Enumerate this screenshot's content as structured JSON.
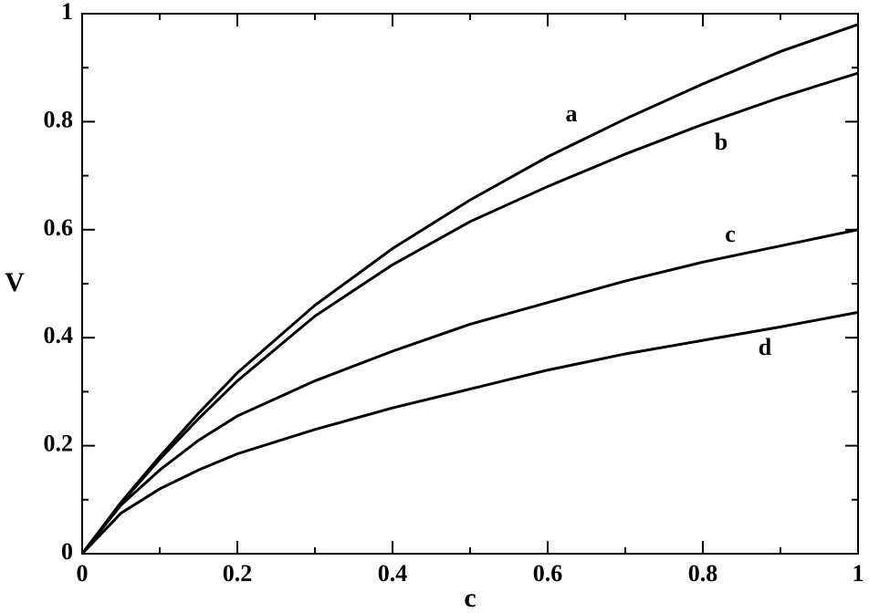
{
  "chart_data": {
    "type": "line",
    "xlabel": "c",
    "ylabel": "V",
    "x": [
      0,
      0.05,
      0.1,
      0.15,
      0.2,
      0.3,
      0.4,
      0.5,
      0.6,
      0.7,
      0.8,
      0.9,
      1
    ],
    "series": [
      {
        "name": "a",
        "color": "#000000",
        "values": [
          0,
          0.095,
          0.18,
          0.26,
          0.335,
          0.46,
          0.565,
          0.655,
          0.735,
          0.805,
          0.87,
          0.93,
          0.98
        ]
      },
      {
        "name": "b",
        "color": "#000000",
        "values": [
          0,
          0.093,
          0.175,
          0.25,
          0.32,
          0.44,
          0.535,
          0.615,
          0.68,
          0.74,
          0.795,
          0.845,
          0.89
        ]
      },
      {
        "name": "c",
        "color": "#000000",
        "values": [
          0,
          0.09,
          0.155,
          0.21,
          0.255,
          0.32,
          0.375,
          0.425,
          0.465,
          0.505,
          0.54,
          0.57,
          0.6
        ]
      },
      {
        "name": "d",
        "color": "#000000",
        "values": [
          0,
          0.075,
          0.12,
          0.155,
          0.185,
          0.23,
          0.27,
          0.305,
          0.34,
          0.37,
          0.395,
          0.42,
          0.447
        ]
      }
    ],
    "xlim": [
      0,
      1
    ],
    "ylim": [
      0,
      1
    ],
    "xticks": [
      0,
      0.2,
      0.4,
      0.6,
      0.8,
      1
    ],
    "yticks": [
      0,
      0.2,
      0.4,
      0.6,
      0.8,
      1
    ],
    "grid": false
  }
}
